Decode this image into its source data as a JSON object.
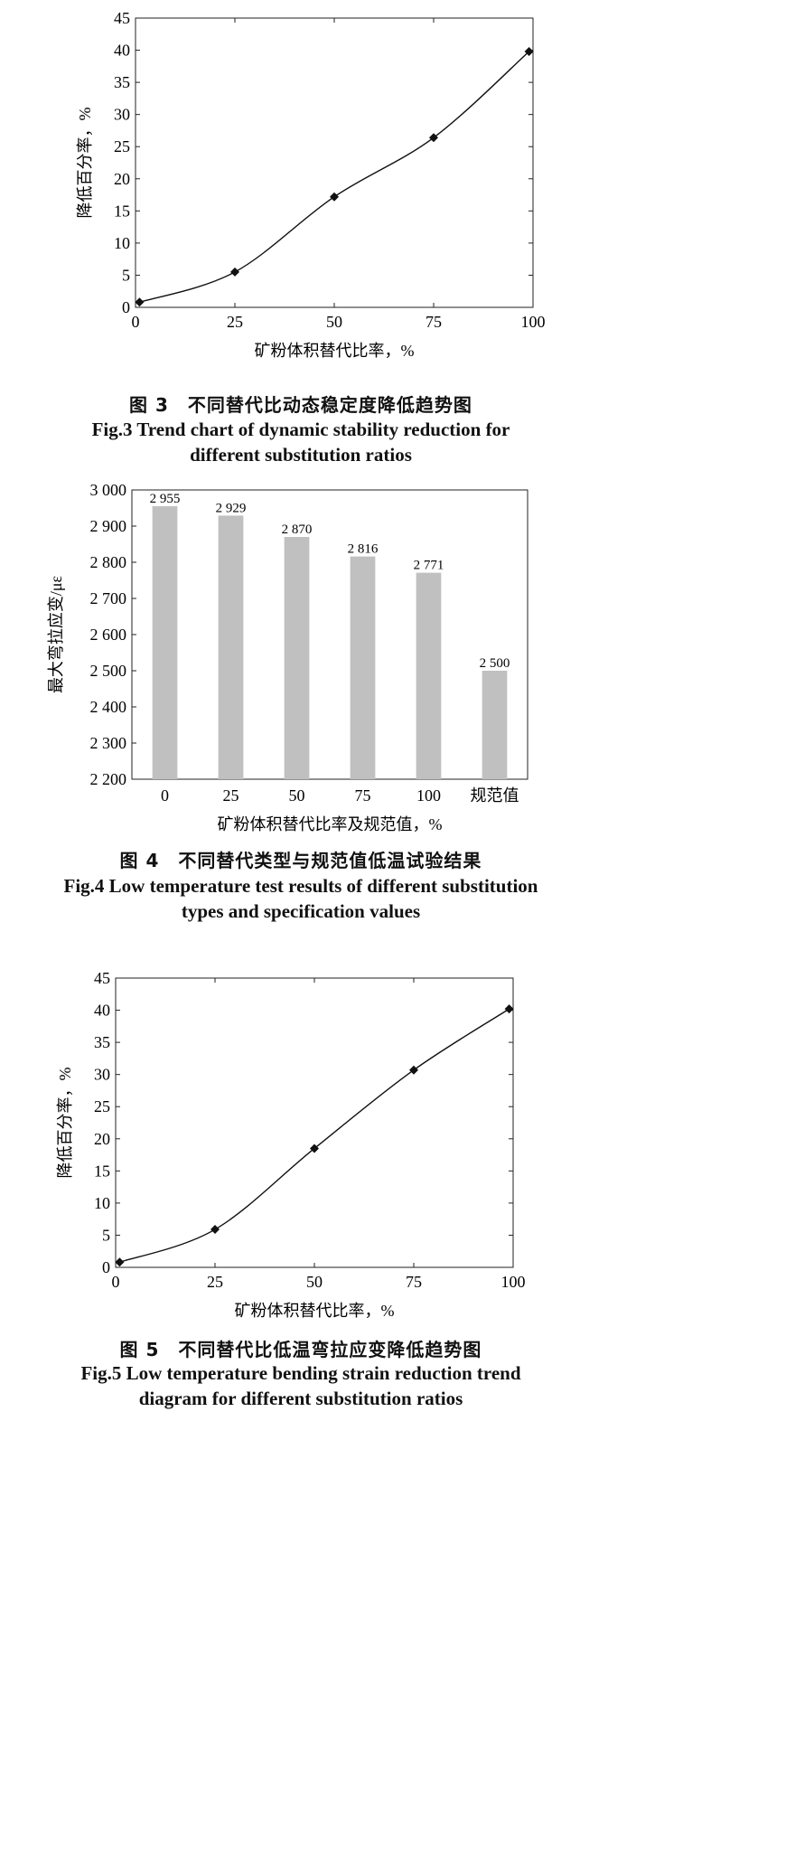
{
  "figures": [
    {
      "caption_cn": "图 3　不同替代比动态稳定度降低趋势图",
      "caption_en_line1": "Fig.3 Trend chart of dynamic stability reduction for",
      "caption_en_line2": "different substitution ratios"
    },
    {
      "caption_cn": "图 4　不同替代类型与规范值低温试验结果",
      "caption_en_line1": "Fig.4 Low temperature test results of different substitution",
      "caption_en_line2": "types and specification values"
    },
    {
      "caption_cn": "图 5　不同替代比低温弯拉应变降低趋势图",
      "caption_en_line1": "Fig.5 Low temperature bending strain reduction trend",
      "caption_en_line2": "diagram for different substitution ratios"
    }
  ],
  "chart_data": [
    {
      "type": "line",
      "xlabel": "矿粉体积替代比率，%",
      "ylabel": "降低百分率，%",
      "x": [
        1,
        25,
        50,
        75,
        99
      ],
      "y": [
        0.8,
        5.5,
        17.2,
        26.4,
        39.8
      ],
      "xlim": [
        0,
        100
      ],
      "ylim": [
        0,
        45
      ],
      "xticks": [
        "0",
        "25",
        "50",
        "75",
        "100"
      ],
      "yticks": [
        "0",
        "5",
        "10",
        "15",
        "20",
        "25",
        "30",
        "35",
        "40",
        "45"
      ],
      "marker": "diamond",
      "grid": false,
      "color": "#111111"
    },
    {
      "type": "bar",
      "categories": [
        "0",
        "25",
        "50",
        "75",
        "100",
        "规范值"
      ],
      "values": [
        2955,
        2929,
        2870,
        2816,
        2771,
        2500
      ],
      "value_labels": [
        "2 955",
        "2 929",
        "2 870",
        "2 816",
        "2 771",
        "2 500"
      ],
      "xlabel": "矿粉体积替代比率及规范值，%",
      "ylabel": "最大弯拉应变/με",
      "ylim": [
        2200,
        3000
      ],
      "yticks": [
        "2 200",
        "2 300",
        "2 400",
        "2 500",
        "2 600",
        "2 700",
        "2 800",
        "2 900",
        "3 000"
      ],
      "grid": false,
      "bar_color": "#c0c0c0"
    },
    {
      "type": "line",
      "xlabel": "矿粉体积替代比率，%",
      "ylabel": "降低百分率，%",
      "x": [
        1,
        25,
        50,
        75,
        99
      ],
      "y": [
        0.8,
        5.9,
        18.5,
        30.7,
        40.2
      ],
      "xlim": [
        0,
        100
      ],
      "ylim": [
        0,
        45
      ],
      "xticks": [
        "0",
        "25",
        "50",
        "75",
        "100"
      ],
      "yticks": [
        "0",
        "5",
        "10",
        "15",
        "20",
        "25",
        "30",
        "35",
        "40",
        "45"
      ],
      "marker": "diamond",
      "grid": false,
      "color": "#111111"
    }
  ]
}
